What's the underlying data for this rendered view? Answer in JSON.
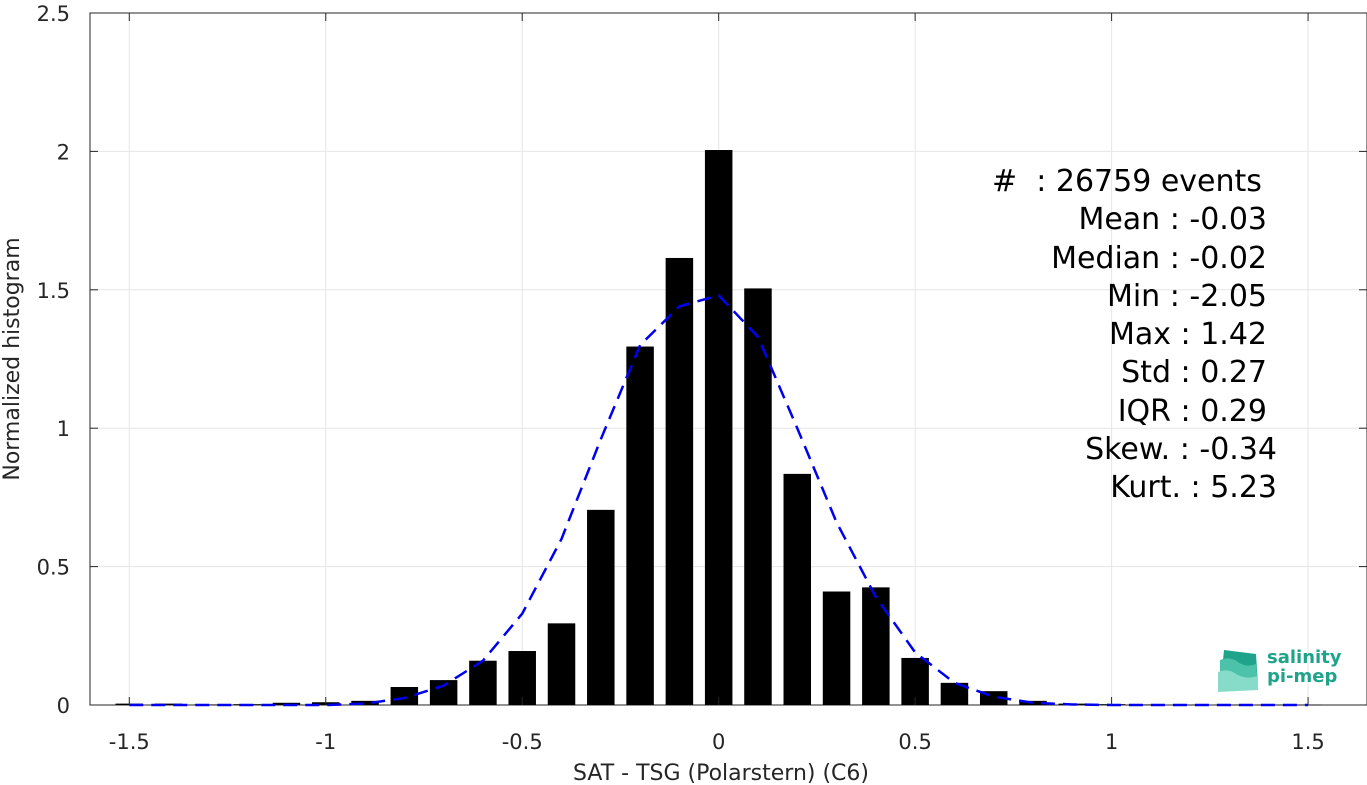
{
  "chart_data": {
    "type": "bar",
    "xlabel": "SAT - TSG (Polarstern) (C6)",
    "ylabel": "Normalized histogram",
    "xlim": [
      -1.6,
      1.65
    ],
    "ylim": [
      0,
      2.5
    ],
    "xticks": [
      -1.5,
      -1,
      -0.5,
      0,
      0.5,
      1,
      1.5
    ],
    "xtick_labels": [
      "-1.5",
      "-1",
      "-0.5",
      "0",
      "0.5",
      "1",
      "1.5"
    ],
    "yticks": [
      0,
      0.5,
      1,
      1.5,
      2,
      2.5
    ],
    "ytick_labels": [
      "0",
      "0.5",
      "1",
      "1.5",
      "2",
      "2.5"
    ],
    "grid": true,
    "bar_width": 0.07,
    "bar_color": "#000000",
    "bars": {
      "x": [
        -1.5,
        -1.4,
        -1.3,
        -1.2,
        -1.1,
        -1.0,
        -0.9,
        -0.8,
        -0.7,
        -0.6,
        -0.5,
        -0.4,
        -0.3,
        -0.2,
        -0.1,
        0.0,
        0.1,
        0.2,
        0.3,
        0.4,
        0.5,
        0.6,
        0.7,
        0.8,
        0.9,
        1.0,
        1.1,
        1.2,
        1.3,
        1.4,
        1.5
      ],
      "values": [
        0.005,
        0.005,
        0.002,
        0.003,
        0.008,
        0.01,
        0.015,
        0.065,
        0.09,
        0.16,
        0.195,
        0.295,
        0.705,
        1.295,
        1.615,
        2.005,
        1.505,
        0.835,
        0.41,
        0.425,
        0.17,
        0.08,
        0.05,
        0.015,
        0.005,
        0.003,
        0.002,
        0.001,
        0.001,
        0.001,
        0.001
      ]
    },
    "fit": {
      "style": "dashed",
      "color": "#0000ee",
      "x": [
        -1.5,
        -1.4,
        -1.3,
        -1.2,
        -1.1,
        -1.0,
        -0.9,
        -0.8,
        -0.7,
        -0.6,
        -0.5,
        -0.4,
        -0.3,
        -0.2,
        -0.1,
        0.0,
        0.1,
        0.2,
        0.3,
        0.4,
        0.5,
        0.6,
        0.7,
        0.8,
        0.9,
        1.0,
        1.1,
        1.2,
        1.3,
        1.4,
        1.5
      ],
      "values": [
        0.0,
        0.0,
        0.0,
        0.0,
        0.0,
        0.0,
        0.005,
        0.025,
        0.07,
        0.16,
        0.33,
        0.6,
        0.96,
        1.3,
        1.44,
        1.48,
        1.33,
        1.0,
        0.66,
        0.39,
        0.19,
        0.08,
        0.03,
        0.008,
        0.002,
        0.0,
        0.0,
        0.0,
        0.0,
        0.0,
        0.0
      ]
    }
  },
  "stats": {
    "events": "#  : 26759 events",
    "mean": "Mean : -0.03",
    "median": "Median : -0.02",
    "min": "Min : -2.05",
    "max": "Max : 1.42",
    "std": "Std : 0.27",
    "iqr": "IQR : 0.29",
    "skew": "Skew. : -0.34",
    "kurt": "Kurt. : 5.23"
  },
  "logo": {
    "line1": "salinity",
    "line2": "pi-mep",
    "color": "#1fa38a"
  }
}
